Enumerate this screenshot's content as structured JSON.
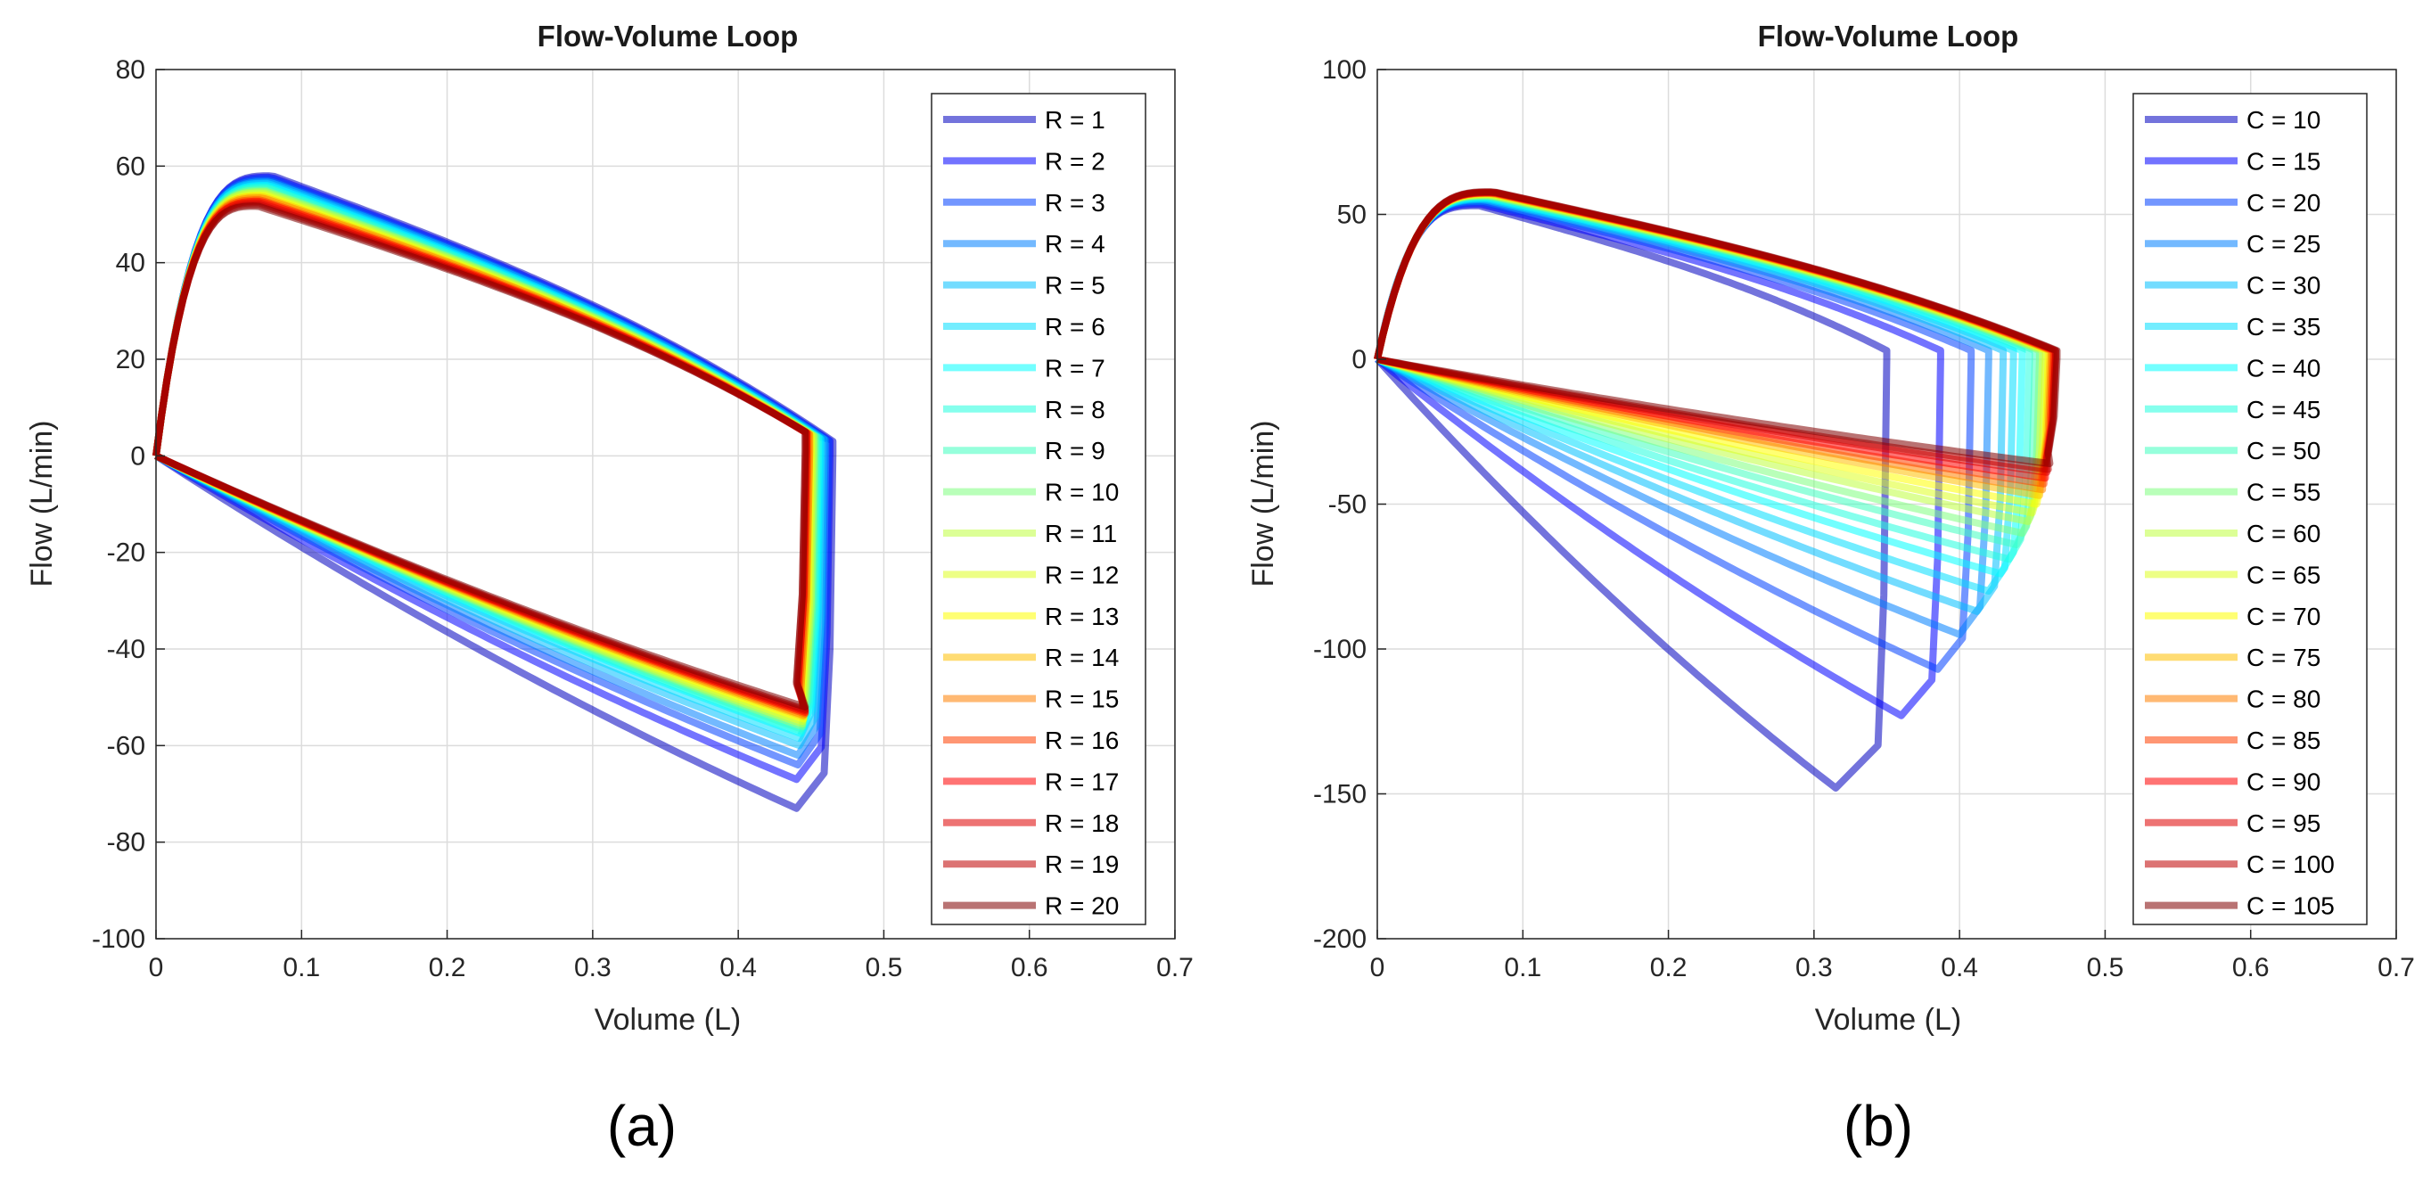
{
  "chart_data": [
    {
      "type": "line",
      "panel": "(a)",
      "title": "Flow-Volume Loop",
      "xlabel": "Volume (L)",
      "ylabel": "Flow (L/min)",
      "xlim": [
        0,
        0.7
      ],
      "ylim": [
        -100,
        80
      ],
      "xticks": [
        0,
        0.1,
        0.2,
        0.3,
        0.4,
        0.5,
        0.6,
        0.7
      ],
      "xtick_labels": [
        "0",
        "0.1",
        "0.2",
        "0.3",
        "0.4",
        "0.5",
        "0.6",
        "0.7"
      ],
      "yticks": [
        -100,
        -80,
        -60,
        -40,
        -20,
        0,
        20,
        40,
        60,
        80
      ],
      "ytick_labels": [
        "-100",
        "-80",
        "-60",
        "-40",
        "-20",
        "0",
        "20",
        "40",
        "60",
        "80"
      ],
      "grid": true,
      "legend_position": "top-right",
      "series": [
        {
          "name": "R = 1",
          "color": "#0000bf",
          "end_volume": 0.465,
          "insp_peak_volume": 0.08,
          "insp_peak_flow": 58,
          "insp_end_flow": 3,
          "exp_min_flow": -73,
          "exp_min_volume": 0.44
        },
        {
          "name": "R = 2",
          "color": "#0000ff",
          "end_volume": 0.463,
          "insp_peak_volume": 0.079,
          "insp_peak_flow": 57.7,
          "insp_end_flow": 3.1,
          "exp_min_flow": -67,
          "exp_min_volume": 0.44
        },
        {
          "name": "R = 3",
          "color": "#0040ff",
          "end_volume": 0.462,
          "insp_peak_volume": 0.079,
          "insp_peak_flow": 57.4,
          "insp_end_flow": 3.2,
          "exp_min_flow": -64,
          "exp_min_volume": 0.441
        },
        {
          "name": "R = 4",
          "color": "#0080ff",
          "end_volume": 0.46,
          "insp_peak_volume": 0.078,
          "insp_peak_flow": 57,
          "insp_end_flow": 3.3,
          "exp_min_flow": -62,
          "exp_min_volume": 0.441
        },
        {
          "name": "R = 5",
          "color": "#00bfff",
          "end_volume": 0.459,
          "insp_peak_volume": 0.078,
          "insp_peak_flow": 56.7,
          "insp_end_flow": 3.4,
          "exp_min_flow": -60,
          "exp_min_volume": 0.442
        },
        {
          "name": "R = 6",
          "color": "#00dfff",
          "end_volume": 0.457,
          "insp_peak_volume": 0.077,
          "insp_peak_flow": 56.4,
          "insp_end_flow": 3.5,
          "exp_min_flow": -58.5,
          "exp_min_volume": 0.442
        },
        {
          "name": "R = 7",
          "color": "#00ffff",
          "end_volume": 0.456,
          "insp_peak_volume": 0.077,
          "insp_peak_flow": 56,
          "insp_end_flow": 3.7,
          "exp_min_flow": -57.5,
          "exp_min_volume": 0.443
        },
        {
          "name": "R = 8",
          "color": "#20ffdf",
          "end_volume": 0.455,
          "insp_peak_volume": 0.076,
          "insp_peak_flow": 55.7,
          "insp_end_flow": 3.8,
          "exp_min_flow": -57,
          "exp_min_volume": 0.443
        },
        {
          "name": "R = 9",
          "color": "#40ffbf",
          "end_volume": 0.454,
          "insp_peak_volume": 0.076,
          "insp_peak_flow": 55.4,
          "insp_end_flow": 3.9,
          "exp_min_flow": -56.5,
          "exp_min_volume": 0.443
        },
        {
          "name": "R = 10",
          "color": "#80ff80",
          "end_volume": 0.453,
          "insp_peak_volume": 0.075,
          "insp_peak_flow": 55,
          "insp_end_flow": 4,
          "exp_min_flow": -56,
          "exp_min_volume": 0.444
        },
        {
          "name": "R = 11",
          "color": "#bfff40",
          "end_volume": 0.452,
          "insp_peak_volume": 0.075,
          "insp_peak_flow": 54.7,
          "insp_end_flow": 4.1,
          "exp_min_flow": -55.5,
          "exp_min_volume": 0.444
        },
        {
          "name": "R = 12",
          "color": "#dfff20",
          "end_volume": 0.451,
          "insp_peak_volume": 0.074,
          "insp_peak_flow": 54.4,
          "insp_end_flow": 4.2,
          "exp_min_flow": -55,
          "exp_min_volume": 0.444
        },
        {
          "name": "R = 13",
          "color": "#ffff00",
          "end_volume": 0.45,
          "insp_peak_volume": 0.074,
          "insp_peak_flow": 54,
          "insp_end_flow": 4.3,
          "exp_min_flow": -54.5,
          "exp_min_volume": 0.445
        },
        {
          "name": "R = 14",
          "color": "#ffbf00",
          "end_volume": 0.449,
          "insp_peak_volume": 0.073,
          "insp_peak_flow": 53.7,
          "insp_end_flow": 4.4,
          "exp_min_flow": -54,
          "exp_min_volume": 0.445
        },
        {
          "name": "R = 15",
          "color": "#ff8000",
          "end_volume": 0.449,
          "insp_peak_volume": 0.073,
          "insp_peak_flow": 53.4,
          "insp_end_flow": 4.5,
          "exp_min_flow": -53.7,
          "exp_min_volume": 0.445
        },
        {
          "name": "R = 16",
          "color": "#ff4000",
          "end_volume": 0.448,
          "insp_peak_volume": 0.072,
          "insp_peak_flow": 53,
          "insp_end_flow": 4.6,
          "exp_min_flow": -53.4,
          "exp_min_volume": 0.446
        },
        {
          "name": "R = 17",
          "color": "#ff0000",
          "end_volume": 0.447,
          "insp_peak_volume": 0.072,
          "insp_peak_flow": 52.7,
          "insp_end_flow": 4.7,
          "exp_min_flow": -53.1,
          "exp_min_volume": 0.446
        },
        {
          "name": "R = 18",
          "color": "#df0000",
          "end_volume": 0.447,
          "insp_peak_volume": 0.071,
          "insp_peak_flow": 52.4,
          "insp_end_flow": 4.8,
          "exp_min_flow": -52.8,
          "exp_min_volume": 0.446
        },
        {
          "name": "R = 19",
          "color": "#bf0000",
          "end_volume": 0.446,
          "insp_peak_volume": 0.071,
          "insp_peak_flow": 52,
          "insp_end_flow": 4.9,
          "exp_min_flow": -52.5,
          "exp_min_volume": 0.446
        },
        {
          "name": "R = 20",
          "color": "#800000",
          "end_volume": 0.446,
          "insp_peak_volume": 0.07,
          "insp_peak_flow": 51.7,
          "insp_end_flow": 5,
          "exp_min_flow": -52,
          "exp_min_volume": 0.446
        }
      ]
    },
    {
      "type": "line",
      "panel": "(b)",
      "title": "Flow-Volume Loop",
      "xlabel": "Volume (L)",
      "ylabel": "Flow (L/min)",
      "xlim": [
        0,
        0.7
      ],
      "ylim": [
        -200,
        100
      ],
      "xticks": [
        0,
        0.1,
        0.2,
        0.3,
        0.4,
        0.5,
        0.6,
        0.7
      ],
      "xtick_labels": [
        "0",
        "0.1",
        "0.2",
        "0.3",
        "0.4",
        "0.5",
        "0.6",
        "0.7"
      ],
      "yticks": [
        -200,
        -150,
        -100,
        -50,
        0,
        50,
        100
      ],
      "ytick_labels": [
        "-200",
        "-150",
        "-100",
        "-50",
        "0",
        "50",
        "100"
      ],
      "grid": true,
      "legend_position": "top-right",
      "series": [
        {
          "name": "C = 10",
          "color": "#0000bf",
          "end_volume": 0.35,
          "insp_peak_volume": 0.07,
          "insp_peak_flow": 53,
          "insp_end_flow": 3,
          "exp_min_flow": -148,
          "exp_min_volume": 0.315
        },
        {
          "name": "C = 15",
          "color": "#0000ff",
          "end_volume": 0.387,
          "insp_peak_volume": 0.071,
          "insp_peak_flow": 53.5,
          "insp_end_flow": 3,
          "exp_min_flow": -123,
          "exp_min_volume": 0.36
        },
        {
          "name": "C = 20",
          "color": "#0040ff",
          "end_volume": 0.408,
          "insp_peak_volume": 0.072,
          "insp_peak_flow": 54,
          "insp_end_flow": 3,
          "exp_min_flow": -107,
          "exp_min_volume": 0.385
        },
        {
          "name": "C = 25",
          "color": "#0080ff",
          "end_volume": 0.42,
          "insp_peak_volume": 0.073,
          "insp_peak_flow": 54.5,
          "insp_end_flow": 3,
          "exp_min_flow": -95,
          "exp_min_volume": 0.4
        },
        {
          "name": "C = 30",
          "color": "#00bfff",
          "end_volume": 0.43,
          "insp_peak_volume": 0.074,
          "insp_peak_flow": 55,
          "insp_end_flow": 3,
          "exp_min_flow": -87,
          "exp_min_volume": 0.412
        },
        {
          "name": "C = 35",
          "color": "#00dfff",
          "end_volume": 0.437,
          "insp_peak_volume": 0.075,
          "insp_peak_flow": 55.3,
          "insp_end_flow": 3,
          "exp_min_flow": -80,
          "exp_min_volume": 0.42
        },
        {
          "name": "C = 40",
          "color": "#00ffff",
          "end_volume": 0.443,
          "insp_peak_volume": 0.076,
          "insp_peak_flow": 55.6,
          "insp_end_flow": 3,
          "exp_min_flow": -74,
          "exp_min_volume": 0.428
        },
        {
          "name": "C = 45",
          "color": "#20ffdf",
          "end_volume": 0.448,
          "insp_peak_volume": 0.076,
          "insp_peak_flow": 55.9,
          "insp_end_flow": 3,
          "exp_min_flow": -69,
          "exp_min_volume": 0.434
        },
        {
          "name": "C = 50",
          "color": "#40ffbf",
          "end_volume": 0.452,
          "insp_peak_volume": 0.077,
          "insp_peak_flow": 56.2,
          "insp_end_flow": 3,
          "exp_min_flow": -64,
          "exp_min_volume": 0.439
        },
        {
          "name": "C = 55",
          "color": "#80ff80",
          "end_volume": 0.455,
          "insp_peak_volume": 0.077,
          "insp_peak_flow": 56.4,
          "insp_end_flow": 3,
          "exp_min_flow": -60,
          "exp_min_volume": 0.443
        },
        {
          "name": "C = 60",
          "color": "#bfff40",
          "end_volume": 0.457,
          "insp_peak_volume": 0.078,
          "insp_peak_flow": 56.6,
          "insp_end_flow": 3,
          "exp_min_flow": -56,
          "exp_min_volume": 0.447
        },
        {
          "name": "C = 65",
          "color": "#dfff20",
          "end_volume": 0.459,
          "insp_peak_volume": 0.078,
          "insp_peak_flow": 56.8,
          "insp_end_flow": 3,
          "exp_min_flow": -53,
          "exp_min_volume": 0.45
        },
        {
          "name": "C = 70",
          "color": "#ffff00",
          "end_volume": 0.461,
          "insp_peak_volume": 0.079,
          "insp_peak_flow": 57,
          "insp_end_flow": 3,
          "exp_min_flow": -50,
          "exp_min_volume": 0.453
        },
        {
          "name": "C = 75",
          "color": "#ffbf00",
          "end_volume": 0.462,
          "insp_peak_volume": 0.079,
          "insp_peak_flow": 57.2,
          "insp_end_flow": 3,
          "exp_min_flow": -47,
          "exp_min_volume": 0.455
        },
        {
          "name": "C = 80",
          "color": "#ff8000",
          "end_volume": 0.463,
          "insp_peak_volume": 0.079,
          "insp_peak_flow": 57.3,
          "insp_end_flow": 3,
          "exp_min_flow": -45,
          "exp_min_volume": 0.457
        },
        {
          "name": "C = 85",
          "color": "#ff4000",
          "end_volume": 0.464,
          "insp_peak_volume": 0.08,
          "insp_peak_flow": 57.4,
          "insp_end_flow": 3,
          "exp_min_flow": -43,
          "exp_min_volume": 0.458
        },
        {
          "name": "C = 90",
          "color": "#ff0000",
          "end_volume": 0.465,
          "insp_peak_volume": 0.08,
          "insp_peak_flow": 57.5,
          "insp_end_flow": 3,
          "exp_min_flow": -41,
          "exp_min_volume": 0.459
        },
        {
          "name": "C = 95",
          "color": "#df0000",
          "end_volume": 0.466,
          "insp_peak_volume": 0.08,
          "insp_peak_flow": 57.6,
          "insp_end_flow": 3,
          "exp_min_flow": -39,
          "exp_min_volume": 0.46
        },
        {
          "name": "C = 100",
          "color": "#bf0000",
          "end_volume": 0.466,
          "insp_peak_volume": 0.08,
          "insp_peak_flow": 57.7,
          "insp_end_flow": 3,
          "exp_min_flow": -38,
          "exp_min_volume": 0.461
        },
        {
          "name": "C = 105",
          "color": "#800000",
          "end_volume": 0.467,
          "insp_peak_volume": 0.08,
          "insp_peak_flow": 57.8,
          "insp_end_flow": 3,
          "exp_min_flow": -36,
          "exp_min_volume": 0.462
        }
      ]
    }
  ]
}
